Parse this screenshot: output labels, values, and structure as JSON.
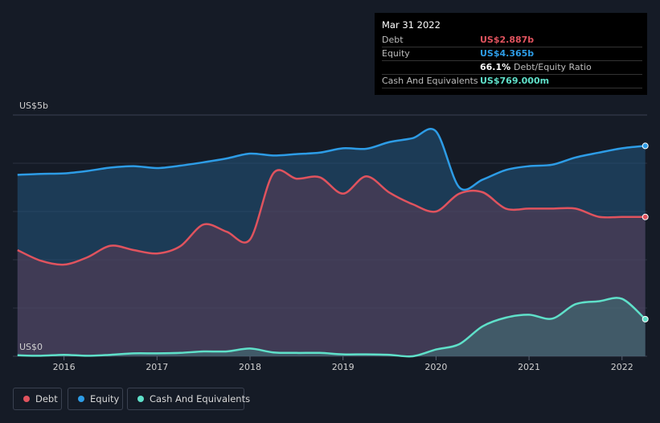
{
  "tooltip": {
    "date": "Mar 31 2022",
    "rows": [
      {
        "label": "Debt",
        "value": "US$2.887b",
        "color": "#e0535e"
      },
      {
        "label": "Equity",
        "value": "US$4.365b",
        "color": "#2d9ce6"
      },
      {
        "label": "",
        "value": "66.1%",
        "extra": "Debt/Equity Ratio",
        "color": "#ffffff"
      },
      {
        "label": "Cash And Equivalents",
        "value": "US$769.000m",
        "color": "#5fe0c9"
      }
    ]
  },
  "legend": [
    {
      "label": "Debt",
      "color": "#e0535e"
    },
    {
      "label": "Equity",
      "color": "#2d9ce6"
    },
    {
      "label": "Cash And Equivalents",
      "color": "#5fe0c9"
    }
  ],
  "chart_data": {
    "type": "area",
    "title": "",
    "xlabel": "",
    "ylabel": "",
    "y_axis_labels": [
      "US$5b",
      "US$0"
    ],
    "x_ticks": [
      "2016",
      "2017",
      "2018",
      "2019",
      "2020",
      "2021",
      "2022"
    ],
    "x_tick_values": [
      2016,
      2017,
      2018,
      2019,
      2020,
      2021,
      2022
    ],
    "xlim": [
      2015.45,
      2022.27
    ],
    "ylim": [
      0,
      5
    ],
    "grid": true,
    "legend_position": "bottom-left",
    "series": [
      {
        "name": "Equity",
        "color": "#2d9ce6",
        "x": [
          2015.5,
          2015.75,
          2016.0,
          2016.25,
          2016.5,
          2016.75,
          2017.0,
          2017.25,
          2017.5,
          2017.75,
          2018.0,
          2018.25,
          2018.5,
          2018.75,
          2019.0,
          2019.25,
          2019.5,
          2019.75,
          2020.0,
          2020.25,
          2020.5,
          2020.75,
          2021.0,
          2021.25,
          2021.5,
          2021.75,
          2022.0,
          2022.25
        ],
        "y": [
          3.76,
          3.78,
          3.79,
          3.84,
          3.91,
          3.94,
          3.9,
          3.95,
          4.02,
          4.1,
          4.2,
          4.16,
          4.19,
          4.22,
          4.31,
          4.3,
          4.44,
          4.52,
          4.66,
          3.5,
          3.66,
          3.86,
          3.94,
          3.97,
          4.12,
          4.22,
          4.31,
          4.36
        ]
      },
      {
        "name": "Debt",
        "color": "#e0535e",
        "x": [
          2015.5,
          2015.75,
          2016.0,
          2016.25,
          2016.5,
          2016.75,
          2017.0,
          2017.25,
          2017.5,
          2017.75,
          2018.0,
          2018.25,
          2018.5,
          2018.75,
          2019.0,
          2019.25,
          2019.5,
          2019.75,
          2020.0,
          2020.25,
          2020.5,
          2020.75,
          2021.0,
          2021.25,
          2021.5,
          2021.75,
          2022.0,
          2022.25
        ],
        "y": [
          2.2,
          1.98,
          1.9,
          2.05,
          2.29,
          2.2,
          2.13,
          2.28,
          2.73,
          2.58,
          2.42,
          3.79,
          3.68,
          3.71,
          3.37,
          3.73,
          3.39,
          3.15,
          3.0,
          3.37,
          3.4,
          3.06,
          3.06,
          3.06,
          3.06,
          2.89,
          2.887,
          2.887
        ]
      },
      {
        "name": "Cash And Equivalents",
        "color": "#5fe0c9",
        "x": [
          2015.5,
          2015.75,
          2016.0,
          2016.25,
          2016.5,
          2016.75,
          2017.0,
          2017.25,
          2017.5,
          2017.75,
          2018.0,
          2018.25,
          2018.5,
          2018.75,
          2019.0,
          2019.25,
          2019.5,
          2019.75,
          2020.0,
          2020.25,
          2020.5,
          2020.75,
          2021.0,
          2021.25,
          2021.5,
          2021.75,
          2022.0,
          2022.25
        ],
        "y": [
          0.02,
          0.01,
          0.03,
          0.01,
          0.03,
          0.06,
          0.06,
          0.07,
          0.1,
          0.1,
          0.16,
          0.08,
          0.07,
          0.07,
          0.04,
          0.04,
          0.03,
          0.0,
          0.14,
          0.25,
          0.62,
          0.8,
          0.86,
          0.78,
          1.08,
          1.14,
          1.19,
          0.769
        ]
      }
    ]
  }
}
